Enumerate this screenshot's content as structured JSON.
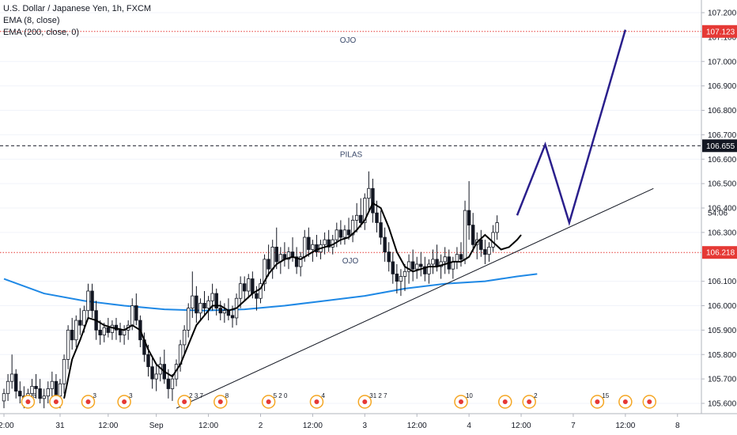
{
  "legend": {
    "title": "U.S. Dollar / Japanese Yen, 1h, FXCM",
    "ema8": "EMA (8, close)",
    "ema200": "EMA (200, close, 0)"
  },
  "colors": {
    "candle": "#131722",
    "ema8": "#000000",
    "ema200": "#1e88e5",
    "trendline": "#131722",
    "projection": "#2a1f8c",
    "red_level": "#e53935",
    "black_level": "#131722",
    "price_tag_red": "#e53935",
    "price_tag_black": "#131722"
  },
  "annotations": [
    {
      "text": "OJO",
      "at_price": 107.123
    },
    {
      "text": "PILAS",
      "at_price": 106.655
    },
    {
      "text": "OJO",
      "at_price": 106.218
    }
  ],
  "chart_data": {
    "type": "candlestick",
    "ylim": [
      105.58,
      107.26
    ],
    "yticks": [
      "107.200",
      "107.100",
      "107.000",
      "106.900",
      "106.800",
      "106.700",
      "106.600",
      "106.500",
      "106.400",
      "106.300",
      "106.100",
      "106.000",
      "105.900",
      "105.800",
      "105.700",
      "105.600"
    ],
    "xticks": [
      {
        "label": "12:00",
        "slot": 0
      },
      {
        "label": "31",
        "slot": 14
      },
      {
        "label": "12:00",
        "slot": 26
      },
      {
        "label": "Sep",
        "slot": 38
      },
      {
        "label": "12:00",
        "slot": 51
      },
      {
        "label": "2",
        "slot": 64
      },
      {
        "label": "12:00",
        "slot": 77
      },
      {
        "label": "3",
        "slot": 90
      },
      {
        "label": "12:00",
        "slot": 103
      },
      {
        "label": "4",
        "slot": 116
      },
      {
        "label": "12:00",
        "slot": 129
      },
      {
        "label": "7",
        "slot": 142
      },
      {
        "label": "12:00",
        "slot": 155
      },
      {
        "label": "8",
        "slot": 168
      }
    ],
    "price_tags": [
      {
        "label": "107.123",
        "price": 107.123,
        "style": "red"
      },
      {
        "label": "106.655",
        "price": 106.655,
        "style": "black"
      },
      {
        "label": "54:06",
        "price": 106.38,
        "style": "plain"
      },
      {
        "label": "106.218",
        "price": 106.218,
        "style": "red"
      }
    ],
    "levels": [
      {
        "price": 107.123,
        "style": "red-dotted"
      },
      {
        "price": 106.655,
        "style": "black-dashed"
      },
      {
        "price": 106.218,
        "style": "red-dotted"
      }
    ],
    "candles": [
      [
        105.61,
        105.66,
        105.58,
        105.64
      ],
      [
        105.64,
        105.72,
        105.61,
        105.69
      ],
      [
        105.69,
        105.8,
        105.66,
        105.72
      ],
      [
        105.72,
        105.74,
        105.62,
        105.65
      ],
      [
        105.65,
        105.69,
        105.6,
        105.63
      ],
      [
        105.63,
        105.67,
        105.58,
        105.6
      ],
      [
        105.6,
        105.66,
        105.58,
        105.64
      ],
      [
        105.64,
        105.7,
        105.61,
        105.67
      ],
      [
        105.67,
        105.72,
        105.62,
        105.66
      ],
      [
        105.66,
        105.7,
        105.6,
        105.62
      ],
      [
        105.62,
        105.66,
        105.58,
        105.63
      ],
      [
        105.63,
        105.69,
        105.6,
        105.66
      ],
      [
        105.66,
        105.73,
        105.62,
        105.69
      ],
      [
        105.69,
        105.72,
        105.6,
        105.63
      ],
      [
        105.63,
        105.7,
        105.58,
        105.68
      ],
      [
        105.68,
        105.8,
        105.64,
        105.78
      ],
      [
        105.78,
        105.92,
        105.74,
        105.9
      ],
      [
        105.9,
        105.95,
        105.82,
        105.86
      ],
      [
        105.86,
        105.96,
        105.83,
        105.94
      ],
      [
        105.94,
        105.99,
        105.88,
        105.92
      ],
      [
        105.92,
        106.0,
        105.89,
        105.98
      ],
      [
        105.98,
        106.09,
        105.95,
        106.06
      ],
      [
        106.06,
        106.09,
        105.95,
        105.98
      ],
      [
        105.98,
        106.02,
        105.86,
        105.9
      ],
      [
        105.9,
        105.94,
        105.84,
        105.88
      ],
      [
        105.88,
        105.93,
        105.85,
        105.91
      ],
      [
        105.91,
        105.95,
        105.87,
        105.89
      ],
      [
        105.89,
        105.94,
        105.86,
        105.92
      ],
      [
        105.92,
        105.95,
        105.86,
        105.9
      ],
      [
        105.9,
        105.93,
        105.85,
        105.88
      ],
      [
        105.88,
        105.92,
        105.84,
        105.9
      ],
      [
        105.9,
        105.94,
        105.86,
        105.92
      ],
      [
        105.92,
        106.03,
        105.9,
        106.0
      ],
      [
        106.0,
        106.05,
        105.92,
        105.94
      ],
      [
        105.94,
        105.96,
        105.83,
        105.86
      ],
      [
        105.86,
        105.89,
        105.77,
        105.8
      ],
      [
        105.8,
        105.84,
        105.71,
        105.75
      ],
      [
        105.75,
        105.79,
        105.66,
        105.7
      ],
      [
        105.7,
        105.76,
        105.65,
        105.72
      ],
      [
        105.72,
        105.79,
        105.69,
        105.76
      ],
      [
        105.76,
        105.82,
        105.68,
        105.7
      ],
      [
        105.7,
        105.74,
        105.62,
        105.66
      ],
      [
        105.66,
        105.72,
        105.61,
        105.7
      ],
      [
        105.7,
        105.78,
        105.67,
        105.76
      ],
      [
        105.76,
        105.86,
        105.73,
        105.84
      ],
      [
        105.84,
        105.92,
        105.8,
        105.9
      ],
      [
        105.9,
        106.01,
        105.87,
        105.99
      ],
      [
        105.99,
        106.14,
        105.95,
        106.04
      ],
      [
        106.04,
        106.08,
        105.93,
        105.97
      ],
      [
        105.97,
        106.03,
        105.94,
        106.01
      ],
      [
        106.01,
        106.06,
        105.96,
        105.99
      ],
      [
        105.99,
        106.04,
        105.94,
        106.02
      ],
      [
        106.02,
        106.09,
        105.98,
        106.05
      ],
      [
        106.05,
        106.07,
        105.96,
        105.99
      ],
      [
        105.99,
        106.02,
        105.94,
        105.97
      ],
      [
        105.97,
        106.01,
        105.93,
        105.98
      ],
      [
        105.98,
        106.03,
        105.94,
        105.96
      ],
      [
        105.96,
        106.0,
        105.91,
        105.95
      ],
      [
        105.95,
        106.05,
        105.92,
        106.03
      ],
      [
        106.03,
        106.12,
        105.99,
        106.09
      ],
      [
        106.09,
        106.12,
        106.02,
        106.06
      ],
      [
        106.06,
        106.13,
        106.03,
        106.11
      ],
      [
        106.11,
        106.14,
        106.03,
        106.05
      ],
      [
        106.05,
        106.08,
        105.98,
        106.03
      ],
      [
        106.03,
        106.11,
        106.01,
        106.09
      ],
      [
        106.09,
        106.21,
        106.06,
        106.19
      ],
      [
        106.19,
        106.25,
        106.12,
        106.15
      ],
      [
        106.15,
        106.27,
        106.11,
        106.24
      ],
      [
        106.24,
        106.32,
        106.15,
        106.18
      ],
      [
        106.18,
        106.24,
        106.13,
        106.21
      ],
      [
        106.21,
        106.26,
        106.16,
        106.19
      ],
      [
        106.19,
        106.24,
        106.15,
        106.22
      ],
      [
        106.22,
        106.28,
        106.18,
        106.2
      ],
      [
        106.2,
        106.24,
        106.13,
        106.16
      ],
      [
        106.16,
        106.22,
        106.12,
        106.2
      ],
      [
        106.2,
        106.31,
        106.18,
        106.28
      ],
      [
        106.28,
        106.32,
        106.2,
        106.23
      ],
      [
        106.23,
        106.27,
        106.18,
        106.25
      ],
      [
        106.25,
        106.29,
        106.2,
        106.22
      ],
      [
        106.22,
        106.27,
        106.19,
        106.25
      ],
      [
        106.25,
        106.3,
        106.21,
        106.27
      ],
      [
        106.27,
        106.31,
        106.22,
        106.24
      ],
      [
        106.24,
        106.29,
        106.21,
        106.27
      ],
      [
        106.27,
        106.34,
        106.24,
        106.31
      ],
      [
        106.31,
        106.35,
        106.25,
        106.28
      ],
      [
        106.28,
        106.33,
        106.25,
        106.31
      ],
      [
        106.31,
        106.36,
        106.27,
        106.29
      ],
      [
        106.29,
        106.37,
        106.26,
        106.35
      ],
      [
        106.35,
        106.42,
        106.3,
        106.37
      ],
      [
        106.37,
        106.44,
        106.32,
        106.34
      ],
      [
        106.34,
        106.46,
        106.31,
        106.44
      ],
      [
        106.44,
        106.55,
        106.39,
        106.48
      ],
      [
        106.48,
        106.52,
        106.34,
        106.38
      ],
      [
        106.38,
        106.43,
        106.3,
        106.34
      ],
      [
        106.34,
        106.39,
        106.25,
        106.28
      ],
      [
        106.28,
        106.32,
        106.18,
        106.22
      ],
      [
        106.22,
        106.26,
        106.14,
        106.18
      ],
      [
        106.18,
        106.22,
        106.09,
        106.13
      ],
      [
        106.13,
        106.17,
        106.05,
        106.1
      ],
      [
        106.1,
        106.15,
        106.04,
        106.12
      ],
      [
        106.12,
        106.17,
        106.06,
        106.14
      ],
      [
        106.14,
        106.21,
        106.09,
        106.18
      ],
      [
        106.18,
        106.23,
        106.1,
        106.15
      ],
      [
        106.15,
        106.2,
        106.11,
        106.17
      ],
      [
        106.17,
        106.22,
        106.12,
        106.16
      ],
      [
        106.16,
        106.2,
        106.1,
        106.13
      ],
      [
        106.13,
        106.19,
        106.09,
        106.17
      ],
      [
        106.17,
        106.23,
        106.13,
        106.19
      ],
      [
        106.19,
        106.25,
        106.14,
        106.16
      ],
      [
        106.16,
        106.21,
        106.11,
        106.18
      ],
      [
        106.18,
        106.24,
        106.13,
        106.2
      ],
      [
        106.2,
        106.23,
        106.13,
        106.15
      ],
      [
        106.15,
        106.2,
        106.11,
        106.18
      ],
      [
        106.18,
        106.24,
        106.15,
        106.21
      ],
      [
        106.21,
        106.26,
        106.16,
        106.19
      ],
      [
        106.19,
        106.43,
        106.17,
        106.39
      ],
      [
        106.39,
        106.51,
        106.27,
        106.33
      ],
      [
        106.33,
        106.38,
        106.22,
        106.25
      ],
      [
        106.25,
        106.3,
        106.19,
        106.27
      ],
      [
        106.27,
        106.31,
        106.2,
        106.23
      ],
      [
        106.23,
        106.27,
        106.17,
        106.21
      ],
      [
        106.21,
        106.26,
        106.18,
        106.24
      ],
      [
        106.24,
        106.33,
        106.22,
        106.3
      ],
      [
        106.3,
        106.37,
        106.27,
        106.34
      ]
    ],
    "ema8": [
      [
        15,
        105.62
      ],
      [
        17,
        105.78
      ],
      [
        19,
        105.86
      ],
      [
        21,
        105.95
      ],
      [
        23,
        105.94
      ],
      [
        25,
        105.92
      ],
      [
        27,
        105.91
      ],
      [
        30,
        105.9
      ],
      [
        32,
        105.92
      ],
      [
        34,
        105.9
      ],
      [
        36,
        105.82
      ],
      [
        38,
        105.76
      ],
      [
        40,
        105.73
      ],
      [
        42,
        105.71
      ],
      [
        44,
        105.76
      ],
      [
        46,
        105.84
      ],
      [
        48,
        105.92
      ],
      [
        50,
        105.96
      ],
      [
        52,
        106.0
      ],
      [
        54,
        106.0
      ],
      [
        56,
        105.98
      ],
      [
        58,
        105.99
      ],
      [
        60,
        106.02
      ],
      [
        62,
        106.05
      ],
      [
        64,
        106.07
      ],
      [
        66,
        106.13
      ],
      [
        68,
        106.17
      ],
      [
        70,
        106.19
      ],
      [
        72,
        106.2
      ],
      [
        74,
        106.19
      ],
      [
        76,
        106.21
      ],
      [
        78,
        106.23
      ],
      [
        80,
        106.24
      ],
      [
        82,
        106.25
      ],
      [
        84,
        106.27
      ],
      [
        86,
        106.28
      ],
      [
        88,
        106.31
      ],
      [
        90,
        106.35
      ],
      [
        92,
        106.42
      ],
      [
        94,
        106.4
      ],
      [
        96,
        106.32
      ],
      [
        98,
        106.22
      ],
      [
        100,
        106.16
      ],
      [
        102,
        106.14
      ],
      [
        104,
        106.15
      ],
      [
        106,
        106.16
      ],
      [
        108,
        106.16
      ],
      [
        110,
        106.17
      ],
      [
        112,
        106.18
      ],
      [
        114,
        106.18
      ],
      [
        116,
        106.2
      ],
      [
        118,
        106.26
      ],
      [
        120,
        106.29
      ],
      [
        122,
        106.26
      ],
      [
        124,
        106.23
      ],
      [
        126,
        106.24
      ],
      [
        128,
        106.27
      ],
      [
        129,
        106.29
      ]
    ],
    "ema200": [
      [
        0,
        106.11
      ],
      [
        10,
        106.05
      ],
      [
        20,
        106.02
      ],
      [
        30,
        106.0
      ],
      [
        40,
        105.985
      ],
      [
        50,
        105.98
      ],
      [
        60,
        105.985
      ],
      [
        70,
        106.0
      ],
      [
        80,
        106.02
      ],
      [
        90,
        106.04
      ],
      [
        100,
        106.07
      ],
      [
        110,
        106.09
      ],
      [
        120,
        106.1
      ],
      [
        128,
        106.12
      ],
      [
        133,
        106.13
      ]
    ],
    "trendline": [
      [
        43,
        105.58
      ],
      [
        162,
        106.48
      ]
    ],
    "projection": [
      [
        128,
        106.37
      ],
      [
        135,
        106.66
      ],
      [
        141,
        106.34
      ],
      [
        155,
        107.13
      ]
    ],
    "events": [
      {
        "slot": 6,
        "label": "6"
      },
      {
        "slot": 13,
        "label": ""
      },
      {
        "slot": 21,
        "label": "3"
      },
      {
        "slot": 30,
        "label": "3"
      },
      {
        "slot": 45,
        "label": "2 3 7"
      },
      {
        "slot": 54,
        "label": "8"
      },
      {
        "slot": 66,
        "label": "5 2 0"
      },
      {
        "slot": 78,
        "label": "4"
      },
      {
        "slot": 90,
        "label": "31 2 7"
      },
      {
        "slot": 114,
        "label": "10"
      },
      {
        "slot": 125,
        "label": ""
      },
      {
        "slot": 131,
        "label": "2"
      },
      {
        "slot": 148,
        "label": "15"
      },
      {
        "slot": 155,
        "label": ""
      },
      {
        "slot": 161,
        "label": ""
      }
    ]
  }
}
